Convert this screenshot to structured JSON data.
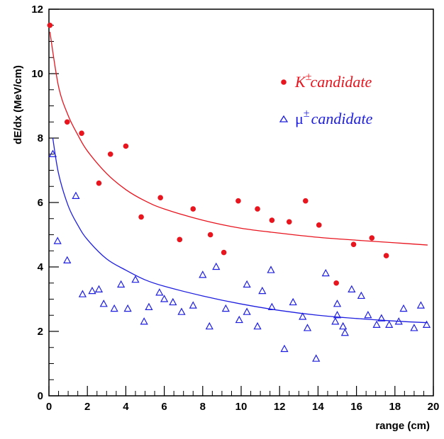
{
  "chart_data": {
    "type": "scatter",
    "xlabel": "range (cm)",
    "ylabel": "dE/dx (MeV/cm)",
    "xlim": [
      0,
      20
    ],
    "ylim": [
      0,
      12
    ],
    "x_ticks": [
      "0",
      "2",
      "4",
      "6",
      "8",
      "10",
      "12",
      "14",
      "16",
      "18",
      "20"
    ],
    "y_ticks": [
      "0",
      "2",
      "4",
      "6",
      "8",
      "10",
      "12"
    ],
    "grid": false,
    "legend_position": "top-right",
    "series": [
      {
        "name": "K candidate",
        "symbol": "K",
        "superscript": "±",
        "label_text": "candidate",
        "color": "#e8141e",
        "marker": "filled-circle",
        "points": [
          [
            0.05,
            11.5
          ],
          [
            0.95,
            8.5
          ],
          [
            1.7,
            8.15
          ],
          [
            2.6,
            6.6
          ],
          [
            3.2,
            7.5
          ],
          [
            4.0,
            7.75
          ],
          [
            4.8,
            5.55
          ],
          [
            5.8,
            6.15
          ],
          [
            6.8,
            4.85
          ],
          [
            7.5,
            5.8
          ],
          [
            8.4,
            5.0
          ],
          [
            9.1,
            4.45
          ],
          [
            9.85,
            6.05
          ],
          [
            10.85,
            5.8
          ],
          [
            11.6,
            5.45
          ],
          [
            12.5,
            5.4
          ],
          [
            13.35,
            6.05
          ],
          [
            14.05,
            5.3
          ],
          [
            14.95,
            3.5
          ],
          [
            15.85,
            4.7
          ],
          [
            16.8,
            4.9
          ],
          [
            17.55,
            4.35
          ]
        ],
        "fit_curve": [
          [
            0.05,
            11.3
          ],
          [
            0.5,
            9.6
          ],
          [
            1,
            8.7
          ],
          [
            1.5,
            8.1
          ],
          [
            2,
            7.6
          ],
          [
            3,
            6.9
          ],
          [
            4,
            6.4
          ],
          [
            5,
            6.05
          ],
          [
            6,
            5.8
          ],
          [
            8,
            5.45
          ],
          [
            10,
            5.2
          ],
          [
            12,
            5.05
          ],
          [
            14,
            4.92
          ],
          [
            16,
            4.83
          ],
          [
            18,
            4.75
          ],
          [
            19.7,
            4.68
          ]
        ]
      },
      {
        "name": "μ candidate",
        "symbol": "μ",
        "superscript": "±",
        "label_text": "candidate",
        "color": "#1e1ee0",
        "marker": "open-triangle",
        "points": [
          [
            0.2,
            7.5
          ],
          [
            0.45,
            4.8
          ],
          [
            0.95,
            4.2
          ],
          [
            1.4,
            6.2
          ],
          [
            1.75,
            3.15
          ],
          [
            2.25,
            3.25
          ],
          [
            2.6,
            3.3
          ],
          [
            2.85,
            2.85
          ],
          [
            3.4,
            2.7
          ],
          [
            3.75,
            3.45
          ],
          [
            4.1,
            2.7
          ],
          [
            4.5,
            3.6
          ],
          [
            4.95,
            2.3
          ],
          [
            5.2,
            2.75
          ],
          [
            5.75,
            3.2
          ],
          [
            6.0,
            3.0
          ],
          [
            6.45,
            2.9
          ],
          [
            6.9,
            2.6
          ],
          [
            7.5,
            2.8
          ],
          [
            8.0,
            3.75
          ],
          [
            8.35,
            2.15
          ],
          [
            8.7,
            4.0
          ],
          [
            9.2,
            2.7
          ],
          [
            9.9,
            2.35
          ],
          [
            10.3,
            3.45
          ],
          [
            10.3,
            2.6
          ],
          [
            10.85,
            2.15
          ],
          [
            11.1,
            3.25
          ],
          [
            11.55,
            3.9
          ],
          [
            11.6,
            2.75
          ],
          [
            12.25,
            1.45
          ],
          [
            12.7,
            2.9
          ],
          [
            13.2,
            2.45
          ],
          [
            13.45,
            2.1
          ],
          [
            13.9,
            1.15
          ],
          [
            14.4,
            3.8
          ],
          [
            14.9,
            2.3
          ],
          [
            15.0,
            2.85
          ],
          [
            15.0,
            2.5
          ],
          [
            15.3,
            2.15
          ],
          [
            15.4,
            1.95
          ],
          [
            15.75,
            3.3
          ],
          [
            16.25,
            3.1
          ],
          [
            16.6,
            2.5
          ],
          [
            17.05,
            2.2
          ],
          [
            17.3,
            2.4
          ],
          [
            17.7,
            2.2
          ],
          [
            18.2,
            2.3
          ],
          [
            18.45,
            2.7
          ],
          [
            19.0,
            2.1
          ],
          [
            19.35,
            2.8
          ],
          [
            19.65,
            2.2
          ]
        ],
        "fit_curve": [
          [
            0.2,
            8.0
          ],
          [
            0.5,
            6.9
          ],
          [
            1,
            5.9
          ],
          [
            1.5,
            5.3
          ],
          [
            2,
            4.85
          ],
          [
            3,
            4.25
          ],
          [
            4,
            3.9
          ],
          [
            5,
            3.6
          ],
          [
            6,
            3.4
          ],
          [
            8,
            3.1
          ],
          [
            10,
            2.85
          ],
          [
            12,
            2.65
          ],
          [
            14,
            2.5
          ],
          [
            16,
            2.4
          ],
          [
            18,
            2.32
          ],
          [
            19.7,
            2.27
          ]
        ]
      }
    ]
  }
}
